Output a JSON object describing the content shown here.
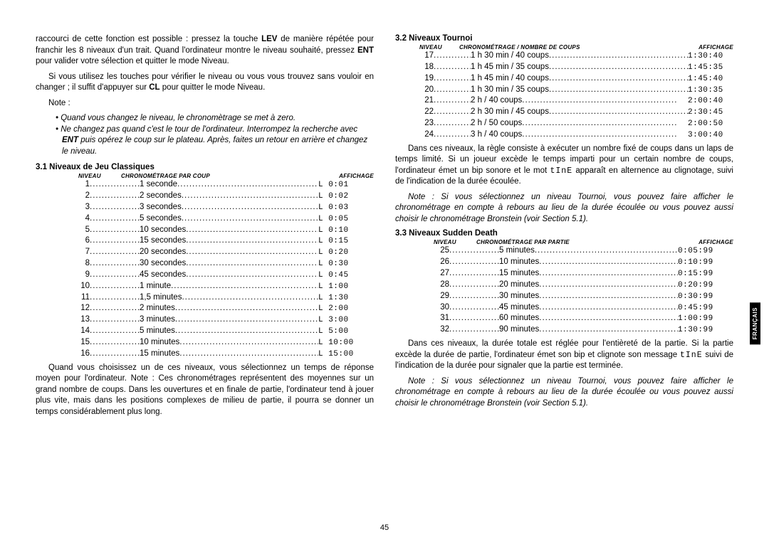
{
  "pagenum": "45",
  "side_tab": "FRANÇAIS",
  "left": {
    "para1_a": "raccourci de cette fonction est possible : pressez la touche ",
    "para1_lev": "LEV",
    "para1_b": " de manière répétée pour franchir les 8 niveaux d'un trait. Quand l'ordinateur montre le niveau souhaité, pressez ",
    "para1_ent": "ENT",
    "para1_c": " pour valider votre sélection et quitter le mode Niveau.",
    "para2_a": "Si vous utilisez les touches pour vérifier le niveau ou vous vous trouvez sans vouloir en changer ; il suffit d'appuyer sur ",
    "para2_cl": "CL",
    "para2_b": " pour quitter le mode Niveau.",
    "note_label": "Note :",
    "note1": "• Quand vous changez le niveau, le chronomètrage se met à zero.",
    "note2": "• Ne changez pas quand c'est le tour de l'ordinateur. Interrompez la recherche avec ENT puis opérez le coup sur le plateau. Après, faites un retour en arrière et changez le niveau.",
    "h31": "3.1 Niveaux de Jeu Classiques",
    "h31_cols": [
      "NIVEAU",
      "CHRONOMÉTRAGE PAR COUP",
      "AFFICHAGE"
    ],
    "rows31": [
      {
        "n": "1",
        "v": "1 seconde",
        "aff": "L  0:01"
      },
      {
        "n": "2",
        "v": "2 secondes",
        "aff": "L  0:02"
      },
      {
        "n": "3",
        "v": "3 secondes",
        "aff": "L  0:03"
      },
      {
        "n": "4",
        "v": "5 secondes",
        "aff": "L  0:05"
      },
      {
        "n": "5",
        "v": "10 secondes",
        "aff": "L  0:10"
      },
      {
        "n": "6",
        "v": "15 secondes",
        "aff": "L  0:15"
      },
      {
        "n": "7",
        "v": "20 secondes",
        "aff": "L  0:20"
      },
      {
        "n": "8",
        "v": "30 secondes",
        "aff": "L  0:30"
      },
      {
        "n": "9",
        "v": "45 secondes",
        "aff": "L  0:45"
      },
      {
        "n": "10",
        "v": "1 minute",
        "aff": "L  1:00"
      },
      {
        "n": "11",
        "v": "1,5 minutes",
        "aff": "L  1:30"
      },
      {
        "n": "12",
        "v": "2 minutes",
        "aff": "L  2:00"
      },
      {
        "n": "13",
        "v": "3 minutes",
        "aff": "L  3:00"
      },
      {
        "n": "14",
        "v": "5 minutes",
        "aff": "L  5:00"
      },
      {
        "n": "15",
        "v": "10 minutes",
        "aff": "L 10:00"
      },
      {
        "n": "16",
        "v": "15 minutes",
        "aff": "L 15:00"
      }
    ],
    "para3": "Quand vous choisissez un de ces niveaux, vous sélectionnez un temps de réponse moyen pour l'ordinateur. Note : Ces chronométrages représentent des moyennes sur un grand nombre de coups. Dans les ouvertures et en finale de partie, l'ordinateur tend à jouer plus vite, mais dans les positions complexes de milieu de partie, il pourra se donner un temps considérablement plus long."
  },
  "right": {
    "h32": "3.2 Niveaux Tournoi",
    "h32_cols": [
      "NIVEAU",
      "CHRONOMÉTRAGE / NOMBRE DE COUPS",
      "AFFICHAGE"
    ],
    "rows32": [
      {
        "n": "17",
        "v": "1 h 30 min / 40 coups",
        "aff": "1:30:40"
      },
      {
        "n": "18",
        "v": "1 h 45 min / 35 coups",
        "aff": "1:45:35"
      },
      {
        "n": "19",
        "v": "1 h 45 min / 40 coups",
        "aff": "1:45:40"
      },
      {
        "n": "20",
        "v": "1 h 30 min / 35 coups",
        "aff": "1:30:35"
      },
      {
        "n": "21",
        "v": "2 h / 40 coups",
        "aff": "2:00:40"
      },
      {
        "n": "22",
        "v": "2 h 30 min / 45 coups",
        "aff": "2:30:45"
      },
      {
        "n": "23",
        "v": "2 h / 50 coups",
        "aff": "2:00:50"
      },
      {
        "n": "24",
        "v": "3 h / 40 coups",
        "aff": "3:00:40"
      }
    ],
    "para32a": "Dans ces niveaux, la règle consiste à exécuter un nombre fixé de coups dans un laps de temps limité. Si un joueur excède le temps imparti pour un certain nombre de coups, l'ordinateur émet un bip sonore et le mot ",
    "para32_tine": "tInE",
    "para32b": " apparaît en alternence au clignotage, suivi de l'indication de la durée écoulée.",
    "note32": "Note : Si vous sélectionnez un niveau Tournoi, vous pouvez faire afficher le chronométrage en compte à rebours au lieu de la durée écoulée ou vous pouvez aussi choisir le chronométrage Bronstein (voir Section 5.1).",
    "h33": "3.3 Niveaux Sudden Death",
    "h33_cols": [
      "NIVEAU",
      "CHRONOMÉTRAGE PAR PARTIE",
      "AFFICHAGE"
    ],
    "rows33": [
      {
        "n": "25",
        "v": "5 minutes",
        "aff": "0:05:99"
      },
      {
        "n": "26",
        "v": "10 minutes",
        "aff": "0:10:99"
      },
      {
        "n": "27",
        "v": "15 minutes",
        "aff": "0:15:99"
      },
      {
        "n": "28",
        "v": "20 minutes",
        "aff": "0:20:99"
      },
      {
        "n": "29",
        "v": "30 minutes",
        "aff": "0:30:99"
      },
      {
        "n": "30",
        "v": "45 minutes",
        "aff": "0:45:99"
      },
      {
        "n": "31",
        "v": "60 minutes",
        "aff": "1:00:99"
      },
      {
        "n": "32",
        "v": "90 minutes",
        "aff": "1:30:99"
      }
    ],
    "para33a": "Dans ces niveaux, la durée totale est réglée pour l'entièreté de la partie. Si la partie excède la durée de partie, l'ordinateur émet son bip et clignote son message ",
    "para33_tine": "tInE",
    "para33b": " suivi de l'indication de la durée pour signaler que la partie est terminée.",
    "note33": "Note : Si vous sélectionnez un niveau Tournoi, vous pouvez faire afficher le chronométrage en compte à rebours au lieu de la durée écoulée ou vous pouvez aussi choisir le chronométrage Bronstein (voir Section 5.1)."
  },
  "dots": "...................................................."
}
